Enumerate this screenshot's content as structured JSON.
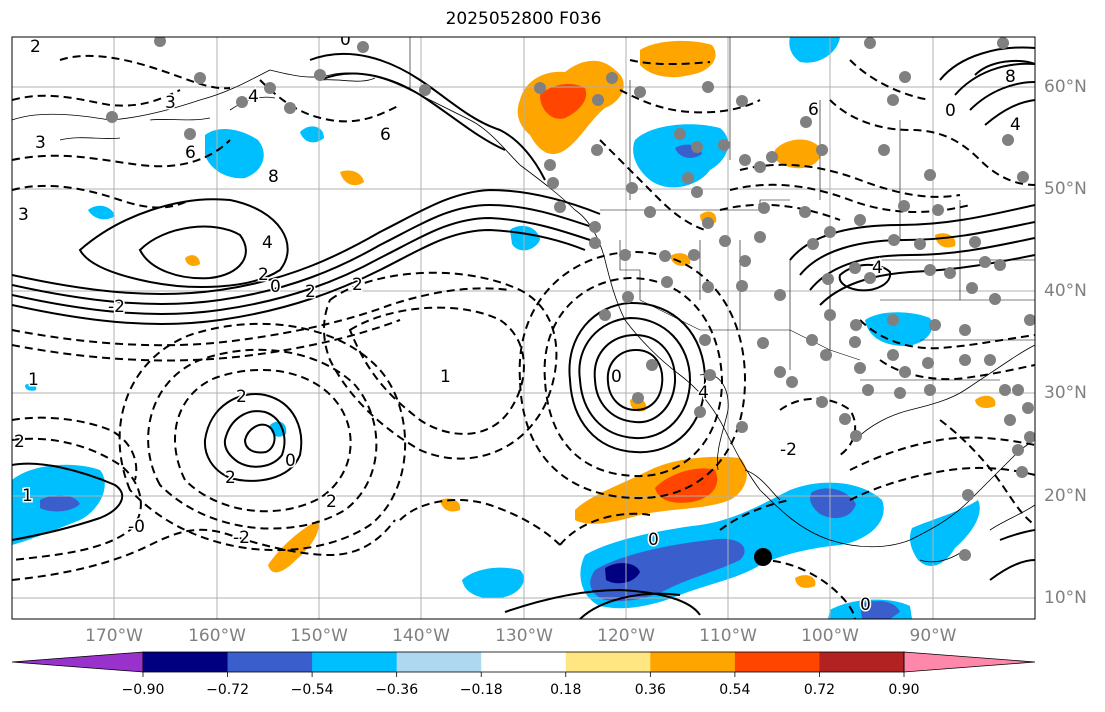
{
  "title": "2025052800 F036",
  "map": {
    "lon_range": [
      "180°W",
      "80°W"
    ],
    "lat_range": [
      "8°N",
      "65°N"
    ],
    "lat_labels": [
      "60°N",
      "50°N",
      "40°N",
      "30°N",
      "20°N",
      "10°N"
    ],
    "lon_labels": [
      "170°W",
      "160°W",
      "150°W",
      "140°W",
      "130°W",
      "120°W",
      "110°W",
      "100°W",
      "90°W"
    ],
    "contour_labels": [
      "2",
      "3",
      "0",
      "6",
      "4",
      "8",
      "3",
      "6",
      "4",
      "2",
      "0",
      "-2",
      "3",
      "1",
      "2",
      "0",
      "2",
      "-0",
      "-2",
      "2",
      "1",
      "2",
      "0",
      "4",
      "6",
      "4",
      "0",
      "8",
      "4",
      "0",
      "-2",
      "0",
      "1",
      "2",
      "2"
    ],
    "colors": {
      "violet": "#9932cc",
      "navy": "#000080",
      "royal_blue": "#3a5fcd",
      "deep_sky_blue": "#00bfff",
      "light_sky_blue": "#add8f0",
      "white": "#ffffff",
      "light_yellow": "#ffe680",
      "orange": "#ffa500",
      "orange_red": "#ff4500",
      "firebrick": "#b22222",
      "pink": "#ff88aa"
    }
  },
  "colorbar": {
    "tick_labels": [
      "−0.90",
      "−0.72",
      "−0.54",
      "−0.36",
      "−0.18",
      "0.18",
      "0.36",
      "0.54",
      "0.72",
      "0.90"
    ],
    "colors": [
      "#9932cc",
      "#000080",
      "#3a5fcd",
      "#00bfff",
      "#add8f0",
      "#ffffff",
      "#ffe680",
      "#ffa500",
      "#ff4500",
      "#b22222",
      "#ff88aa"
    ]
  }
}
